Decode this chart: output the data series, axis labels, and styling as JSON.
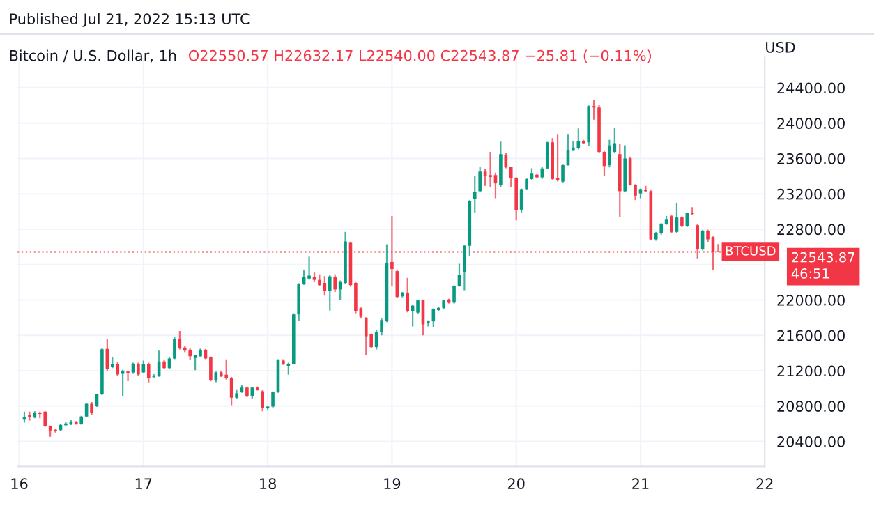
{
  "chart_data": {
    "type": "candlestick",
    "title": "Bitcoin / U.S. Dollar, 1h",
    "subtitle": "O22550.57 H22632.17 L22540.00 C22543.87 −25.81 (−0.11%)",
    "ylabel": "USD",
    "annotations": [
      "Published Jul 21, 2022 15:13 UTC",
      "22543.87",
      "46:51"
    ],
    "colors": [
      "#089981",
      "#f23645",
      "#089981",
      "#f23645",
      "#f23645",
      "#f23645",
      "#f23645",
      "#089981",
      "#089981",
      "#089981",
      "#f23645",
      "#089981",
      "#089981",
      "#f23645",
      "#089981",
      "#089981",
      "#f23645",
      "#089981",
      "#f23645",
      "#089981",
      "#f23645",
      "#089981",
      "#f23645",
      "#089981",
      "#f23645",
      "#089981",
      "#089981",
      "#f23645",
      "#089981",
      "#089981",
      "#f23645",
      "#f23645",
      "#f23645",
      "#089981",
      "#089981",
      "#f23645",
      "#f23645",
      "#089981",
      "#f23645",
      "#f23645",
      "#f23645",
      "#089981",
      "#089981",
      "#f23645",
      "#089981",
      "#f23645",
      "#f23645",
      "#089981",
      "#089981",
      "#089981",
      "#f23645",
      "#089981",
      "#089981",
      "#089981",
      "#089981",
      "#089981",
      "#f23645",
      "#f23645",
      "#f23645",
      "#089981",
      "#f23645",
      "#089981",
      "#089981",
      "#f23645",
      "#f23645",
      "#f23645",
      "#f23645",
      "#f23645",
      "#089981",
      "#089981",
      "#089981",
      "#f23645",
      "#f23645",
      "#089981",
      "#f23645",
      "#089981",
      "#089981",
      "#f23645",
      "#089981",
      "#089981",
      "#089981",
      "#089981",
      "#f23645",
      "#089981",
      "#089981",
      "#089981",
      "#089981",
      "#089981",
      "#089981",
      "#f23645",
      "#f23645",
      "#f23645",
      "#089981",
      "#f23645",
      "#f23645",
      "#f23645",
      "#089981",
      "#089981",
      "#089981",
      "#f23645",
      "#089981",
      "#089981",
      "#f23645",
      "#f23645",
      "#089981",
      "#089981",
      "#089981",
      "#089981",
      "#f23645",
      "#089981",
      "#f23645",
      "#f23645",
      "#f23645",
      "#089981",
      "#089981",
      "#f23645",
      "#089981",
      "#f23645",
      "#f23645",
      "#089981",
      "#f23645",
      "#f23645",
      "#089981",
      "#089981",
      "#089981",
      "#f23645",
      "#089981",
      "#f23645",
      "#089981",
      "#f23645",
      "#f23645",
      "#089981",
      "#f23645",
      "#f23645",
      "#f23645"
    ],
    "x": [
      "2022-07-16T01:00",
      "2022-07-16T02:00",
      "2022-07-16T03:00",
      "2022-07-16T04:00",
      "2022-07-16T05:00",
      "2022-07-16T06:00",
      "2022-07-16T07:00",
      "2022-07-16T08:00",
      "2022-07-16T09:00",
      "2022-07-16T10:00",
      "2022-07-16T11:00",
      "2022-07-16T12:00",
      "2022-07-16T13:00",
      "2022-07-16T14:00",
      "2022-07-16T15:00",
      "2022-07-16T16:00",
      "2022-07-16T17:00",
      "2022-07-16T18:00",
      "2022-07-16T19:00",
      "2022-07-16T20:00",
      "2022-07-16T21:00",
      "2022-07-16T22:00",
      "2022-07-16T23:00",
      "2022-07-17T00:00",
      "2022-07-17T01:00",
      "2022-07-17T02:00",
      "2022-07-17T03:00",
      "2022-07-17T04:00",
      "2022-07-17T05:00",
      "2022-07-17T06:00",
      "2022-07-17T07:00",
      "2022-07-17T08:00",
      "2022-07-17T09:00",
      "2022-07-17T10:00",
      "2022-07-17T11:00",
      "2022-07-17T12:00",
      "2022-07-17T13:00",
      "2022-07-17T14:00",
      "2022-07-17T15:00",
      "2022-07-17T16:00",
      "2022-07-17T17:00",
      "2022-07-17T18:00",
      "2022-07-17T19:00",
      "2022-07-17T20:00",
      "2022-07-17T21:00",
      "2022-07-17T22:00",
      "2022-07-17T23:00",
      "2022-07-18T00:00",
      "2022-07-18T01:00",
      "2022-07-18T02:00",
      "2022-07-18T03:00",
      "2022-07-18T04:00",
      "2022-07-18T05:00",
      "2022-07-18T06:00",
      "2022-07-18T07:00",
      "2022-07-18T08:00",
      "2022-07-18T09:00",
      "2022-07-18T10:00",
      "2022-07-18T11:00",
      "2022-07-18T12:00",
      "2022-07-18T13:00",
      "2022-07-18T14:00",
      "2022-07-18T15:00",
      "2022-07-18T16:00",
      "2022-07-18T17:00",
      "2022-07-18T18:00",
      "2022-07-18T19:00",
      "2022-07-18T20:00",
      "2022-07-18T21:00",
      "2022-07-18T22:00",
      "2022-07-18T23:00",
      "2022-07-19T00:00",
      "2022-07-19T01:00",
      "2022-07-19T02:00",
      "2022-07-19T03:00",
      "2022-07-19T04:00",
      "2022-07-19T05:00",
      "2022-07-19T06:00",
      "2022-07-19T07:00",
      "2022-07-19T08:00",
      "2022-07-19T09:00",
      "2022-07-19T10:00",
      "2022-07-19T11:00",
      "2022-07-19T12:00",
      "2022-07-19T13:00",
      "2022-07-19T14:00",
      "2022-07-19T15:00",
      "2022-07-19T16:00",
      "2022-07-19T17:00",
      "2022-07-19T18:00",
      "2022-07-19T19:00",
      "2022-07-19T20:00",
      "2022-07-19T21:00",
      "2022-07-19T22:00",
      "2022-07-19T23:00",
      "2022-07-20T00:00",
      "2022-07-20T01:00",
      "2022-07-20T02:00",
      "2022-07-20T03:00",
      "2022-07-20T04:00",
      "2022-07-20T05:00",
      "2022-07-20T06:00",
      "2022-07-20T07:00",
      "2022-07-20T08:00",
      "2022-07-20T09:00",
      "2022-07-20T10:00",
      "2022-07-20T11:00",
      "2022-07-20T12:00",
      "2022-07-20T13:00",
      "2022-07-20T14:00",
      "2022-07-20T15:00",
      "2022-07-20T16:00",
      "2022-07-20T17:00",
      "2022-07-20T18:00",
      "2022-07-20T19:00",
      "2022-07-20T20:00",
      "2022-07-20T21:00",
      "2022-07-20T22:00",
      "2022-07-20T23:00",
      "2022-07-21T00:00",
      "2022-07-21T01:00",
      "2022-07-21T02:00",
      "2022-07-21T03:00",
      "2022-07-21T04:00",
      "2022-07-21T05:00",
      "2022-07-21T06:00",
      "2022-07-21T07:00",
      "2022-07-21T08:00",
      "2022-07-21T09:00",
      "2022-07-21T10:00",
      "2022-07-21T11:00",
      "2022-07-21T12:00",
      "2022-07-21T13:00",
      "2022-07-21T14:00",
      "2022-07-21T15:00"
    ],
    "ohlc": [
      [
        20647,
        20736,
        20612,
        20672
      ],
      [
        20696,
        20736,
        20637,
        20677
      ],
      [
        20672,
        20740,
        20662,
        20726
      ],
      [
        20726,
        20736,
        20662,
        20711
      ],
      [
        20736,
        20740,
        20565,
        20573
      ],
      [
        20573,
        20580,
        20454,
        20524
      ],
      [
        20533,
        20540,
        20500,
        20514
      ],
      [
        20529,
        20600,
        20514,
        20588
      ],
      [
        20583,
        20625,
        20575,
        20603
      ],
      [
        20593,
        20640,
        20585,
        20622
      ],
      [
        20622,
        20630,
        20590,
        20598
      ],
      [
        20598,
        20690,
        20590,
        20682
      ],
      [
        20682,
        20830,
        20675,
        20825
      ],
      [
        20825,
        20845,
        20700,
        20726
      ],
      [
        20800,
        20940,
        20790,
        20933
      ],
      [
        20933,
        21460,
        20925,
        21442
      ],
      [
        21447,
        21560,
        21200,
        21215
      ],
      [
        21245,
        21353,
        21230,
        21274
      ],
      [
        21274,
        21300,
        21140,
        21156
      ],
      [
        21165,
        21210,
        20909,
        21195
      ],
      [
        21190,
        21200,
        21081,
        21175
      ],
      [
        21180,
        21290,
        21165,
        21279
      ],
      [
        21279,
        21290,
        21140,
        21156
      ],
      [
        21180,
        21314,
        21170,
        21279
      ],
      [
        21279,
        21290,
        21067,
        21121
      ],
      [
        21131,
        21160,
        21120,
        21141
      ],
      [
        21141,
        21427,
        21131,
        21304
      ],
      [
        21304,
        21320,
        21215,
        21230
      ],
      [
        21230,
        21350,
        21215,
        21338
      ],
      [
        21338,
        21580,
        21330,
        21560
      ],
      [
        21560,
        21649,
        21440,
        21452
      ],
      [
        21462,
        21480,
        21410,
        21427
      ],
      [
        21437,
        21450,
        21320,
        21363
      ],
      [
        21343,
        21380,
        21205,
        21373
      ],
      [
        21363,
        21450,
        21350,
        21437
      ],
      [
        21437,
        21445,
        21330,
        21338
      ],
      [
        21353,
        21360,
        21080,
        21091
      ],
      [
        21091,
        21190,
        21070,
        21180
      ],
      [
        21180,
        21200,
        21130,
        21141
      ],
      [
        21155,
        21328,
        21100,
        21116
      ],
      [
        21121,
        21130,
        20810,
        20894
      ],
      [
        20894,
        20990,
        20880,
        20943
      ],
      [
        20958,
        21040,
        20950,
        21008
      ],
      [
        21008,
        21020,
        20900,
        20909
      ],
      [
        20909,
        21010,
        20880,
        21008
      ],
      [
        21008,
        21020,
        20975,
        20983
      ],
      [
        20968,
        20980,
        20740,
        20775
      ],
      [
        20775,
        20800,
        20760,
        20795
      ],
      [
        20795,
        20965,
        20785,
        20958
      ],
      [
        20958,
        21330,
        20950,
        21319
      ],
      [
        21314,
        21330,
        21265,
        21274
      ],
      [
        21255,
        21290,
        21155,
        21274
      ],
      [
        21279,
        21850,
        21270,
        21837
      ],
      [
        21837,
        22190,
        21760,
        22178
      ],
      [
        22178,
        22340,
        22170,
        22262
      ],
      [
        22242,
        22490,
        22230,
        22276
      ],
      [
        22262,
        22310,
        22210,
        22227
      ],
      [
        22227,
        22290,
        22160,
        22168
      ],
      [
        22193,
        22270,
        22050,
        22104
      ],
      [
        22104,
        22280,
        21880,
        22267
      ],
      [
        22257,
        22290,
        22090,
        22119
      ],
      [
        22119,
        22220,
        22000,
        22203
      ],
      [
        22193,
        22770,
        22180,
        22662
      ],
      [
        22647,
        22660,
        22150,
        22168
      ],
      [
        22193,
        22200,
        21850,
        21872
      ],
      [
        21906,
        21915,
        21790,
        21812
      ],
      [
        21797,
        21805,
        21380,
        21590
      ],
      [
        21610,
        21620,
        21460,
        21467
      ],
      [
        21467,
        21660,
        21440,
        21640
      ],
      [
        21640,
        21790,
        21600,
        21773
      ],
      [
        21763,
        22630,
        21750,
        22415
      ],
      [
        22430,
        22950,
        22160,
        22350
      ],
      [
        22326,
        22335,
        22020,
        22034
      ],
      [
        22044,
        22090,
        22030,
        22084
      ],
      [
        22084,
        22250,
        21860,
        21872
      ],
      [
        21872,
        21950,
        21700,
        21936
      ],
      [
        21857,
        22005,
        21845,
        21995
      ],
      [
        21995,
        22005,
        21600,
        21724
      ],
      [
        21738,
        21770,
        21700,
        21758
      ],
      [
        21758,
        21905,
        21690,
        21896
      ],
      [
        21886,
        21920,
        21875,
        21911
      ],
      [
        21911,
        22000,
        21900,
        21995
      ],
      [
        22005,
        22015,
        21960,
        21970
      ],
      [
        21970,
        22165,
        21960,
        22158
      ],
      [
        22158,
        22410,
        22150,
        22282
      ],
      [
        22316,
        22620,
        22110,
        22613
      ],
      [
        22613,
        23130,
        22500,
        23121
      ],
      [
        23141,
        23400,
        22990,
        23220
      ],
      [
        23230,
        23510,
        23220,
        23452
      ],
      [
        23452,
        23480,
        23290,
        23402
      ],
      [
        23412,
        23674,
        23280,
        23392
      ],
      [
        23412,
        23440,
        23150,
        23319
      ],
      [
        23304,
        23791,
        23280,
        23649
      ],
      [
        23639,
        23660,
        23490,
        23501
      ],
      [
        23501,
        23510,
        23280,
        23378
      ],
      [
        23378,
        23390,
        22900,
        23017
      ],
      [
        23022,
        23260,
        22990,
        23254
      ],
      [
        23254,
        23375,
        23250,
        23368
      ],
      [
        23368,
        23490,
        23360,
        23437
      ],
      [
        23417,
        23430,
        23380,
        23388
      ],
      [
        23388,
        23510,
        23370,
        23487
      ],
      [
        23487,
        23790,
        23480,
        23783
      ],
      [
        23783,
        23830,
        23360,
        23368
      ],
      [
        23378,
        23870,
        23340,
        23353
      ],
      [
        23339,
        23530,
        23320,
        23526
      ],
      [
        23526,
        23870,
        23520,
        23699
      ],
      [
        23699,
        23800,
        23690,
        23724
      ],
      [
        23714,
        23940,
        23705,
        23798
      ],
      [
        23798,
        23810,
        23765,
        23773
      ],
      [
        23783,
        24200,
        23740,
        24193
      ],
      [
        24193,
        24265,
        24040,
        24178
      ],
      [
        24178,
        24210,
        23665,
        23674
      ],
      [
        23674,
        23680,
        23402,
        23516
      ],
      [
        23526,
        23810,
        23500,
        23748
      ],
      [
        23674,
        23950,
        23665,
        23773
      ],
      [
        23650,
        23770,
        22935,
        23230
      ],
      [
        23230,
        23750,
        23220,
        23600
      ],
      [
        23600,
        23620,
        23295,
        23304
      ],
      [
        23304,
        23310,
        23130,
        23180
      ],
      [
        23205,
        23260,
        23150,
        23254
      ],
      [
        23245,
        23290,
        23220,
        23230
      ],
      [
        23230,
        23240,
        22680,
        22686
      ],
      [
        22686,
        22770,
        22670,
        22760
      ],
      [
        22760,
        22870,
        22740,
        22859
      ],
      [
        22859,
        22950,
        22850,
        22908
      ],
      [
        22948,
        22960,
        22760,
        22770
      ],
      [
        22770,
        23100,
        22760,
        22933
      ],
      [
        22933,
        22945,
        22825,
        22834
      ],
      [
        22834,
        22990,
        22825,
        22983
      ],
      [
        22983,
        23050,
        22965,
        22973
      ],
      [
        22845,
        22855,
        22470,
        22578
      ],
      [
        22578,
        22790,
        22560,
        22785
      ],
      [
        22785,
        22795,
        22650,
        22686
      ],
      [
        22711,
        22720,
        22340,
        22550
      ],
      [
        22550.57,
        22632.17,
        22540,
        22543.87
      ]
    ],
    "xlim": [
      "2022-07-15T23:40",
      "2022-07-22T00:00"
    ],
    "xticks": [
      {
        "value": "2022-07-16",
        "label": "16"
      },
      {
        "value": "2022-07-17",
        "label": "17"
      },
      {
        "value": "2022-07-18",
        "label": "18"
      },
      {
        "value": "2022-07-19",
        "label": "19"
      },
      {
        "value": "2022-07-20",
        "label": "20"
      },
      {
        "value": "2022-07-21",
        "label": "21"
      },
      {
        "value": "2022-07-22",
        "label": "22"
      }
    ],
    "ylim": [
      20118,
      24741
    ],
    "yticks": [
      {
        "value": 20400,
        "label": "20400.00"
      },
      {
        "value": 20800,
        "label": "20800.00"
      },
      {
        "value": 21200,
        "label": "21200.00"
      },
      {
        "value": 21600,
        "label": "21600.00"
      },
      {
        "value": 22000,
        "label": "22000.00"
      },
      {
        "value": 22400,
        "label": null
      },
      {
        "value": 22800,
        "label": "22800.00"
      },
      {
        "value": 23200,
        "label": "23200.00"
      },
      {
        "value": 23600,
        "label": "23600.00"
      },
      {
        "value": 24000,
        "label": "24000.00"
      },
      {
        "value": 24400,
        "label": "24400.00"
      }
    ],
    "grid": true,
    "ref_lines": [
      {
        "axis": "y",
        "value": 22543.87,
        "label": "BTCUSD",
        "color": "#f23645",
        "line_style": "dotted"
      }
    ]
  }
}
